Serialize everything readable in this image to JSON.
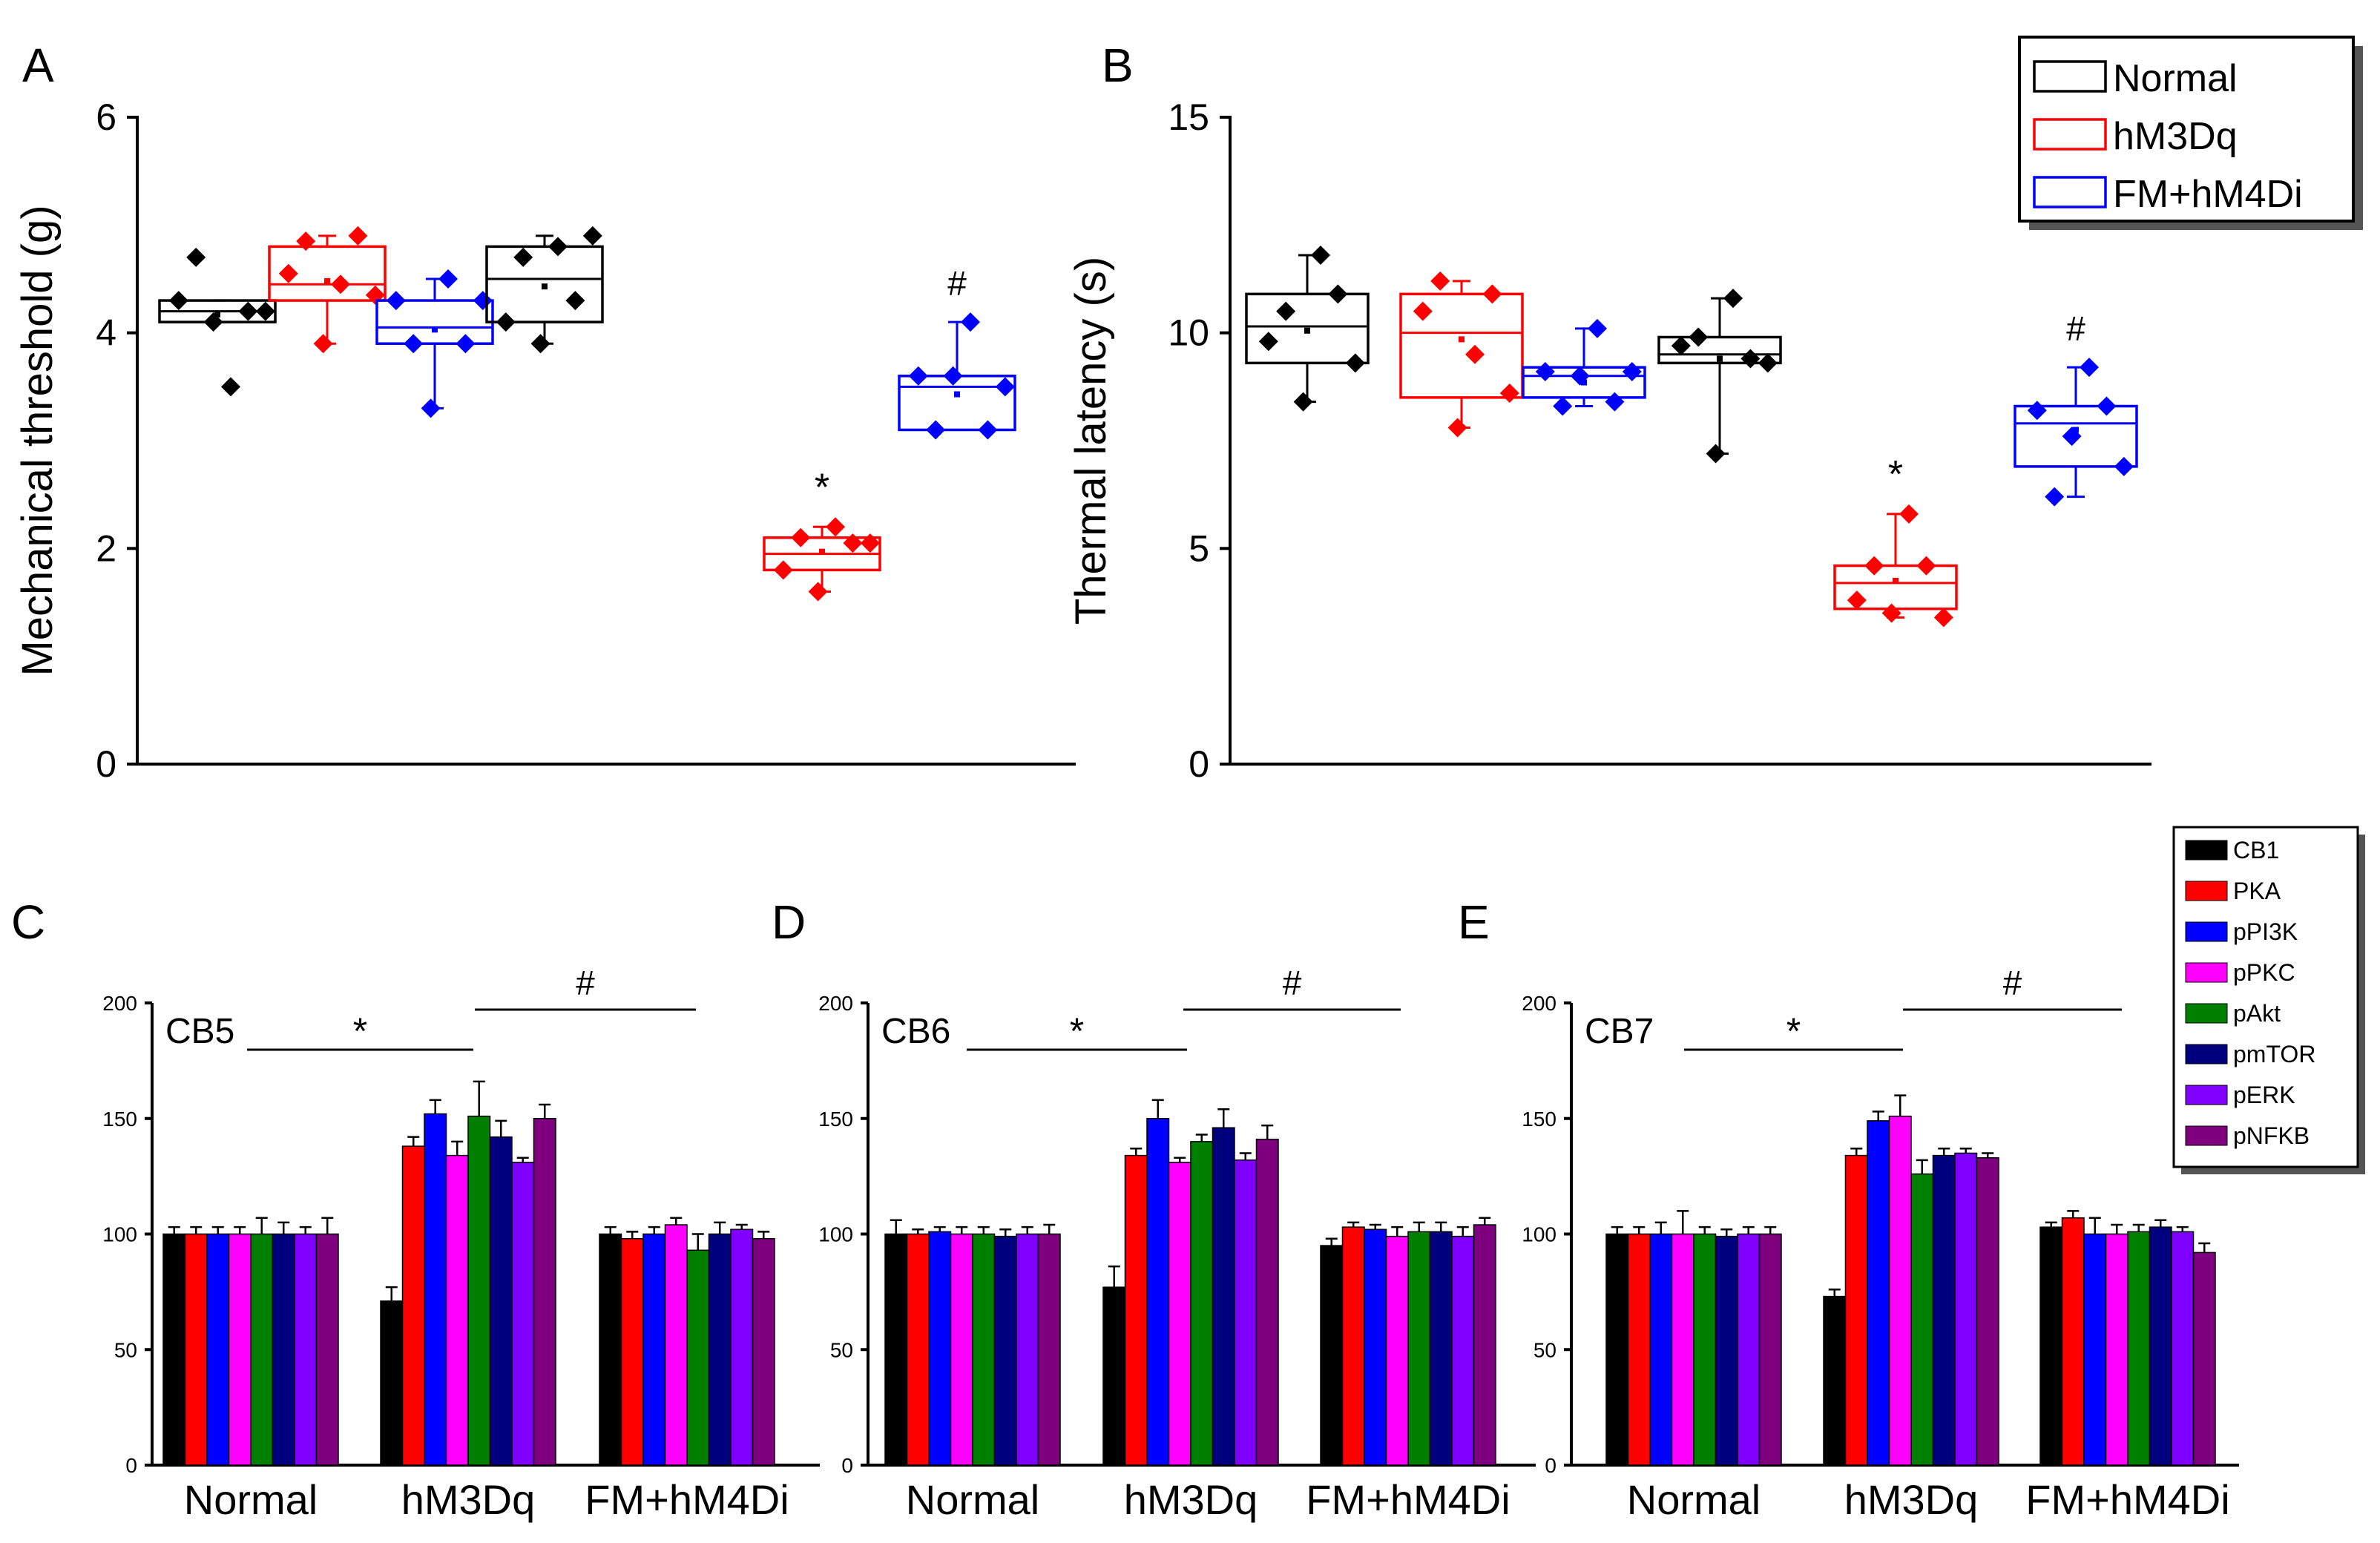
{
  "colors": {
    "Normal": "#000000",
    "hM3Dq": "#ff0000",
    "FM+hM4Di": "#0000ff",
    "CB1": "#000000",
    "PKA": "#ff0000",
    "pPI3K": "#0000ff",
    "pPKC": "#ff00ff",
    "pAkt": "#007f00",
    "pmTOR": "#00007f",
    "pERK": "#7f00ff",
    "pNFKB": "#7f007f"
  },
  "legend_top": {
    "entries": [
      "Normal",
      "hM3Dq",
      "FM+hM4Di"
    ]
  },
  "legend_bottom": {
    "entries": [
      "CB1",
      "PKA",
      "pPI3K",
      "pPKC",
      "pAkt",
      "pmTOR",
      "pERK",
      "pNFKB"
    ]
  },
  "chart_data": [
    {
      "panel": "A",
      "type": "box",
      "ylabel": "Mechanical threshold (g)",
      "ylim": [
        0,
        6
      ],
      "yticks": [
        0,
        2,
        4,
        6
      ],
      "groups": [
        {
          "series": "Normal",
          "box": [
            4.1,
            4.3
          ],
          "median": 4.2,
          "mean": 4.17,
          "whiskers": [
            4.1,
            4.3
          ],
          "points": [
            4.3,
            4.7,
            4.1,
            3.5,
            4.2,
            4.2
          ]
        },
        {
          "series": "hM3Dq",
          "box": [
            4.3,
            4.8
          ],
          "median": 4.45,
          "mean": 4.48,
          "whiskers": [
            3.9,
            4.9
          ],
          "points": [
            4.55,
            4.85,
            3.9,
            4.45,
            4.9,
            4.35
          ]
        },
        {
          "series": "FM+hM4Di",
          "box": [
            3.9,
            4.3
          ],
          "median": 4.05,
          "mean": 4.03,
          "whiskers": [
            3.3,
            4.5
          ],
          "points": [
            4.3,
            3.9,
            3.3,
            4.5,
            3.9,
            4.3
          ]
        },
        {
          "series": "Normal",
          "box": [
            4.1,
            4.8
          ],
          "median": 4.5,
          "mean": 4.43,
          "whiskers": [
            3.9,
            4.9
          ],
          "points": [
            4.1,
            4.7,
            3.9,
            4.8,
            4.3,
            4.9
          ]
        },
        {
          "series": "hM3Dq",
          "box": [
            1.8,
            2.1
          ],
          "median": 1.95,
          "mean": 1.97,
          "whiskers": [
            1.6,
            2.2
          ],
          "points": [
            1.8,
            2.1,
            1.6,
            2.2,
            2.05,
            2.05
          ],
          "annotation": "*"
        },
        {
          "series": "FM+hM4Di",
          "box": [
            3.1,
            3.6
          ],
          "median": 3.5,
          "mean": 3.43,
          "whiskers": [
            3.1,
            4.1
          ],
          "points": [
            3.6,
            3.1,
            3.6,
            4.1,
            3.1,
            3.5
          ],
          "annotation": "#"
        }
      ]
    },
    {
      "panel": "B",
      "type": "box",
      "ylabel": "Thermal latency (s)",
      "ylim": [
        0,
        15
      ],
      "yticks": [
        0,
        5,
        10,
        15
      ],
      "groups": [
        {
          "series": "Normal",
          "box": [
            9.3,
            10.9
          ],
          "median": 10.15,
          "mean": 10.05,
          "whiskers": [
            8.4,
            11.8
          ],
          "points": [
            9.8,
            10.5,
            8.4,
            11.8,
            10.9,
            9.3
          ]
        },
        {
          "series": "hM3Dq",
          "box": [
            8.5,
            10.9
          ],
          "median": 10.0,
          "mean": 9.85,
          "whiskers": [
            7.8,
            11.2
          ],
          "points": [
            10.5,
            11.2,
            7.8,
            9.5,
            10.9,
            8.6
          ]
        },
        {
          "series": "FM+hM4Di",
          "box": [
            8.5,
            9.2
          ],
          "median": 9.0,
          "mean": 8.85,
          "whiskers": [
            8.3,
            10.1
          ],
          "points": [
            9.1,
            8.3,
            9.0,
            10.1,
            8.4,
            9.1
          ]
        },
        {
          "series": "Normal",
          "box": [
            9.3,
            9.9
          ],
          "median": 9.5,
          "mean": 9.4,
          "whiskers": [
            7.2,
            10.8
          ],
          "points": [
            9.7,
            9.9,
            7.2,
            10.8,
            9.4,
            9.3
          ]
        },
        {
          "series": "hM3Dq",
          "box": [
            3.6,
            4.6
          ],
          "median": 4.2,
          "mean": 4.25,
          "whiskers": [
            3.4,
            5.8
          ],
          "points": [
            3.8,
            4.6,
            3.5,
            5.8,
            4.6,
            3.4
          ],
          "annotation": "*"
        },
        {
          "series": "FM+hM4Di",
          "box": [
            6.9,
            8.3
          ],
          "median": 7.9,
          "mean": 7.75,
          "whiskers": [
            6.2,
            9.2
          ],
          "points": [
            8.2,
            6.2,
            7.6,
            9.2,
            8.3,
            6.9
          ],
          "annotation": "#"
        }
      ]
    },
    {
      "panel": "C",
      "type": "bar",
      "inset_label": "CB5",
      "ylim": [
        0,
        200
      ],
      "yticks": [
        0,
        50,
        100,
        150,
        200
      ],
      "categories": [
        "Normal",
        "hM3Dq",
        "FM+hM4Di"
      ],
      "significance": [
        "*",
        "#"
      ],
      "series": [
        {
          "name": "CB1",
          "values": [
            100,
            71,
            100
          ],
          "errors": [
            3,
            6,
            3
          ]
        },
        {
          "name": "PKA",
          "values": [
            100,
            138,
            98
          ],
          "errors": [
            3,
            4,
            3
          ]
        },
        {
          "name": "pPI3K",
          "values": [
            100,
            152,
            100
          ],
          "errors": [
            3,
            6,
            3
          ]
        },
        {
          "name": "pPKC",
          "values": [
            100,
            134,
            104
          ],
          "errors": [
            3,
            6,
            3
          ]
        },
        {
          "name": "pAkt",
          "values": [
            100,
            151,
            93
          ],
          "errors": [
            7,
            15,
            7
          ]
        },
        {
          "name": "pmTOR",
          "values": [
            100,
            142,
            100
          ],
          "errors": [
            5,
            7,
            5
          ]
        },
        {
          "name": "pERK",
          "values": [
            100,
            131,
            102
          ],
          "errors": [
            3,
            2,
            2
          ]
        },
        {
          "name": "pNFKB",
          "values": [
            100,
            150,
            98
          ],
          "errors": [
            7,
            6,
            3
          ]
        }
      ]
    },
    {
      "panel": "D",
      "type": "bar",
      "inset_label": "CB6",
      "ylim": [
        0,
        200
      ],
      "yticks": [
        0,
        50,
        100,
        150,
        200
      ],
      "categories": [
        "Normal",
        "hM3Dq",
        "FM+hM4Di"
      ],
      "significance": [
        "*",
        "#"
      ],
      "series": [
        {
          "name": "CB1",
          "values": [
            100,
            77,
            95
          ],
          "errors": [
            6,
            9,
            3
          ]
        },
        {
          "name": "PKA",
          "values": [
            100,
            134,
            103
          ],
          "errors": [
            2,
            3,
            2
          ]
        },
        {
          "name": "pPI3K",
          "values": [
            101,
            150,
            102
          ],
          "errors": [
            2,
            8,
            2
          ]
        },
        {
          "name": "pPKC",
          "values": [
            100,
            131,
            99
          ],
          "errors": [
            3,
            2,
            4
          ]
        },
        {
          "name": "pAkt",
          "values": [
            100,
            140,
            101
          ],
          "errors": [
            3,
            3,
            4
          ]
        },
        {
          "name": "pmTOR",
          "values": [
            99,
            146,
            101
          ],
          "errors": [
            3,
            8,
            4
          ]
        },
        {
          "name": "pERK",
          "values": [
            100,
            132,
            99
          ],
          "errors": [
            3,
            3,
            4
          ]
        },
        {
          "name": "pNFKB",
          "values": [
            100,
            141,
            104
          ],
          "errors": [
            4,
            6,
            3
          ]
        }
      ]
    },
    {
      "panel": "E",
      "type": "bar",
      "inset_label": "CB7",
      "ylim": [
        0,
        200
      ],
      "yticks": [
        0,
        50,
        100,
        150,
        200
      ],
      "categories": [
        "Normal",
        "hM3Dq",
        "FM+hM4Di"
      ],
      "significance": [
        "*",
        "#"
      ],
      "series": [
        {
          "name": "CB1",
          "values": [
            100,
            73,
            103
          ],
          "errors": [
            3,
            3,
            2
          ]
        },
        {
          "name": "PKA",
          "values": [
            100,
            134,
            107
          ],
          "errors": [
            3,
            3,
            3
          ]
        },
        {
          "name": "pPI3K",
          "values": [
            100,
            149,
            100
          ],
          "errors": [
            5,
            4,
            7
          ]
        },
        {
          "name": "pPKC",
          "values": [
            100,
            151,
            100
          ],
          "errors": [
            10,
            9,
            4
          ]
        },
        {
          "name": "pAkt",
          "values": [
            100,
            126,
            101
          ],
          "errors": [
            3,
            6,
            3
          ]
        },
        {
          "name": "pmTOR",
          "values": [
            99,
            134,
            103
          ],
          "errors": [
            3,
            3,
            3
          ]
        },
        {
          "name": "pERK",
          "values": [
            100,
            135,
            101
          ],
          "errors": [
            3,
            2,
            2
          ]
        },
        {
          "name": "pNFKB",
          "values": [
            100,
            133,
            92
          ],
          "errors": [
            3,
            2,
            4
          ]
        }
      ]
    }
  ]
}
